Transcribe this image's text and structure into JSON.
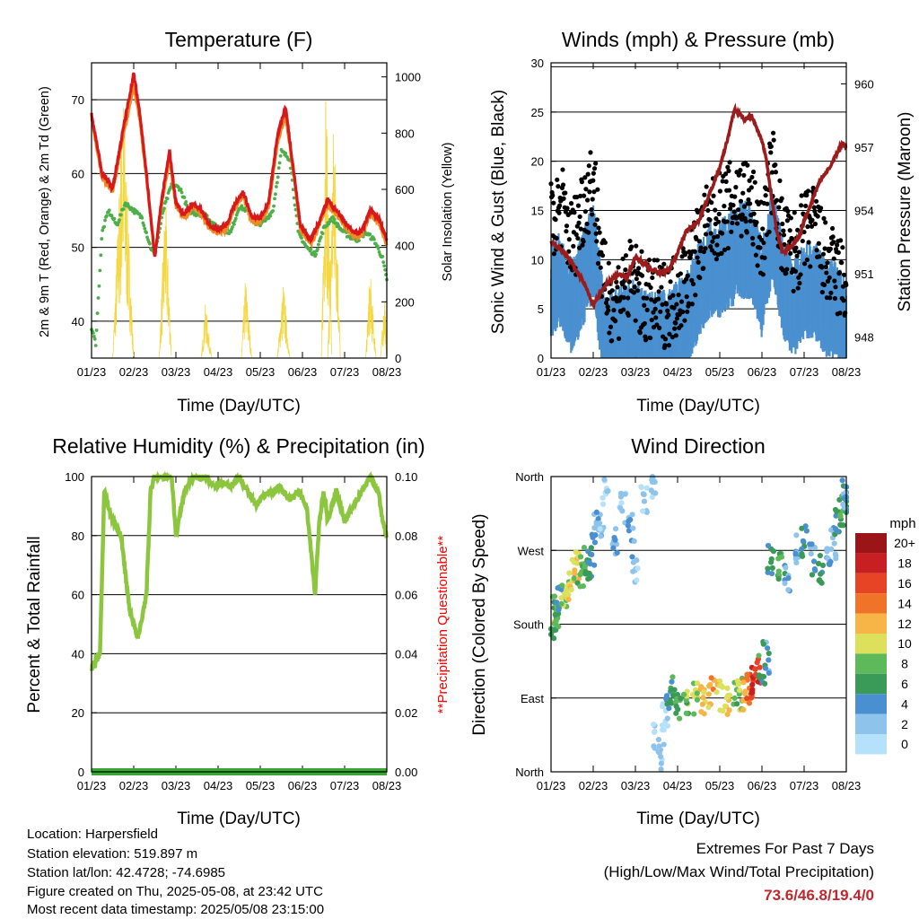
{
  "panels": {
    "temperature": {
      "title": "Temperature (F)",
      "ylabel_left": "2m & 9m T (Red, Orange) & 2m Td (Green)",
      "ylabel_right": "Solar Insolation (Yellow)",
      "xlabel": "Time (Day/UTC)"
    },
    "winds": {
      "title": "Winds (mph) & Pressure (mb)",
      "ylabel_left": "Sonic Wind & Gust (Blue, Black)",
      "ylabel_right": "Station Pressure (Maroon)",
      "xlabel": "Time (Day/UTC)"
    },
    "humidity": {
      "title": "Relative Humidity (%) & Precipitation (in)",
      "ylabel_left": "Percent & Total Rainfall",
      "ylabel_right": "**Precipitation Questionable**",
      "xlabel": "Time (Day/UTC)"
    },
    "direction": {
      "title": "Wind Direction",
      "ylabel_left": "Direction (Colored By Speed)",
      "xlabel": "Time (Day/UTC)",
      "colorbar_title": "mph"
    }
  },
  "info": {
    "location": "Location: Harpersfield",
    "elevation": "Station elevation: 519.897 m",
    "latlon": "Station lat/lon: 42.4728; -74.6985",
    "created": "Figure created on Thu, 2025-05-08, at 23:42 UTC",
    "recent": "Most recent data timestamp: 2025/05/08 23:15:00"
  },
  "extremes": {
    "line1": "Extremes For Past 7 Days",
    "line2": "(High/Low/Max Wind/Total Precipitation)",
    "values": "73.6/46.8/19.4/0"
  },
  "colors": {
    "temp2m": "#d7191c",
    "temp9m": "#f08a24",
    "dewpoint": "#4daf4a",
    "solar": "#f5d742",
    "wind": "#4a90d0",
    "gust": "#000000",
    "pressure": "#9b1c1c",
    "rh": "#8cc63f",
    "precip": "#3aa635",
    "precip_label": "#ff0000",
    "extremes": "#c0282d",
    "speed_scale": [
      "#b5e2fa",
      "#8ec3ec",
      "#4a90d0",
      "#3a9a58",
      "#5eb95b",
      "#dde05a",
      "#f7b548",
      "#f0732a",
      "#e64425",
      "#c71f22",
      "#9a1418"
    ]
  },
  "chart_data": [
    {
      "type": "line",
      "title": "Temperature (F)",
      "xlabel": "Time (Day/UTC)",
      "x_ticks": [
        "01/23",
        "02/23",
        "03/23",
        "04/23",
        "05/23",
        "06/23",
        "07/23",
        "08/23"
      ],
      "x_range": [
        0,
        7
      ],
      "ylim": [
        35,
        75
      ],
      "y_ticks": [
        40,
        50,
        60,
        70
      ],
      "y2lim": [
        0,
        1050
      ],
      "y2_ticks": [
        0,
        200,
        400,
        600,
        800,
        1000
      ],
      "grid": "horizontal",
      "series": [
        {
          "name": "2m T",
          "axis": "left",
          "x": [
            0,
            0.25,
            0.5,
            0.75,
            1.0,
            1.15,
            1.3,
            1.5,
            1.65,
            1.85,
            2.0,
            2.2,
            2.4,
            2.6,
            2.8,
            3.0,
            3.2,
            3.4,
            3.6,
            3.8,
            4.0,
            4.2,
            4.4,
            4.6,
            4.8,
            4.95,
            5.2,
            5.4,
            5.6,
            5.8,
            6.0,
            6.2,
            6.4,
            6.6,
            6.8,
            7.0
          ],
          "values": [
            68,
            60,
            58,
            66,
            73.5,
            68,
            60,
            48.5,
            56,
            63,
            56,
            54.5,
            56,
            55,
            53,
            52.5,
            53,
            56,
            57.5,
            54,
            54,
            56,
            65,
            69,
            60,
            53,
            51,
            53.5,
            56.5,
            55,
            53.5,
            52,
            52,
            55,
            54,
            51
          ]
        },
        {
          "name": "9m T",
          "axis": "left",
          "x": [
            0,
            0.25,
            0.5,
            0.75,
            1.0,
            1.15,
            1.3,
            1.5,
            1.65,
            1.85,
            2.0,
            2.2,
            2.4,
            2.6,
            2.8,
            3.0,
            3.2,
            3.4,
            3.6,
            3.8,
            4.0,
            4.2,
            4.4,
            4.6,
            4.8,
            4.95,
            5.2,
            5.4,
            5.6,
            5.8,
            6.0,
            6.2,
            6.4,
            6.6,
            6.8,
            7.0
          ],
          "values": [
            67.5,
            59.5,
            57.5,
            65,
            72,
            67,
            59.5,
            49,
            55.5,
            62,
            55.5,
            54,
            55.5,
            54.5,
            52.5,
            52,
            52.5,
            55.5,
            57,
            53.5,
            53.5,
            55.5,
            64,
            68,
            59.5,
            52.5,
            50.5,
            53,
            56,
            54.5,
            53,
            51.5,
            51.5,
            54.5,
            53.5,
            50.5
          ]
        },
        {
          "name": "2m Td",
          "axis": "left",
          "x": [
            0,
            0.1,
            0.25,
            0.4,
            0.6,
            0.8,
            1.0,
            1.2,
            1.4,
            1.5,
            1.7,
            1.9,
            2.1,
            2.3,
            2.5,
            2.7,
            2.9,
            3.1,
            3.3,
            3.5,
            3.7,
            3.9,
            4.1,
            4.3,
            4.5,
            4.7,
            4.9,
            5.1,
            5.3,
            5.5,
            5.7,
            5.9,
            6.1,
            6.3,
            6.5,
            6.7,
            6.9,
            7.0
          ],
          "values": [
            39,
            37,
            52,
            55,
            53,
            56,
            55,
            54,
            50,
            49,
            55,
            58.5,
            58,
            55,
            54.5,
            54.5,
            53,
            52.5,
            52,
            55.5,
            55,
            53,
            53.5,
            55,
            63,
            62,
            52,
            50,
            49,
            52.5,
            54,
            52.5,
            51.5,
            51,
            52,
            51,
            48.5,
            45.5
          ]
        },
        {
          "name": "Solar Insolation",
          "axis": "right",
          "bursts": [
            [
              0.5,
              0.75,
              1.0,
              980
            ],
            [
              1.6,
              1.75,
              1.9,
              600
            ],
            [
              2.6,
              2.7,
              2.85,
              200
            ],
            [
              3.55,
              3.65,
              3.8,
              300
            ],
            [
              4.4,
              4.55,
              4.7,
              280
            ],
            [
              5.45,
              5.55,
              5.7,
              1040
            ],
            [
              5.6,
              5.75,
              5.9,
              950
            ],
            [
              6.5,
              6.6,
              6.75,
              330
            ],
            [
              6.85,
              6.95,
              7.0,
              250
            ]
          ]
        }
      ]
    },
    {
      "type": "scatter",
      "title": "Winds (mph) & Pressure (mb)",
      "xlabel": "Time (Day/UTC)",
      "x_ticks": [
        "01/23",
        "02/23",
        "03/23",
        "04/23",
        "05/23",
        "06/23",
        "07/23",
        "08/23"
      ],
      "x_range": [
        0,
        7
      ],
      "ylim": [
        0,
        30
      ],
      "y_ticks": [
        0,
        5,
        10,
        15,
        20,
        25,
        30
      ],
      "y2lim": [
        947,
        961
      ],
      "y2_ticks": [
        948,
        951,
        954,
        957,
        960
      ],
      "grid": "horizontal",
      "series": [
        {
          "name": "Sonic Wind",
          "type": "area",
          "x": [
            0,
            0.25,
            0.5,
            0.75,
            1.0,
            1.25,
            1.5,
            1.75,
            2.0,
            2.25,
            2.5,
            2.75,
            3.0,
            3.25,
            3.5,
            3.75,
            4.0,
            4.25,
            4.5,
            4.75,
            5.0,
            5.25,
            5.5,
            5.75,
            6.0,
            6.25,
            6.5,
            6.75,
            7.0
          ],
          "values": [
            8,
            9,
            6,
            9,
            12,
            3,
            3,
            4,
            4,
            3,
            3,
            3,
            4,
            5,
            8,
            10,
            10,
            11,
            12,
            12,
            8,
            14,
            8,
            6,
            8,
            8,
            6,
            6,
            4
          ]
        },
        {
          "name": "Gust",
          "type": "scatter",
          "x": [
            0,
            0.25,
            0.5,
            0.75,
            1.0,
            1.25,
            1.5,
            1.75,
            2.0,
            2.25,
            2.5,
            2.75,
            3.0,
            3.25,
            3.5,
            3.75,
            4.0,
            4.25,
            4.5,
            4.75,
            5.0,
            5.25,
            5.5,
            5.75,
            6.0,
            6.25,
            6.5,
            6.75,
            7.0
          ],
          "values": [
            14,
            16,
            12,
            16,
            19,
            8,
            6,
            8,
            8,
            6,
            6,
            6,
            7,
            9,
            12,
            14,
            15,
            16,
            17,
            16,
            12,
            20,
            12,
            11,
            13,
            14,
            10,
            9,
            8
          ]
        },
        {
          "name": "Station Pressure",
          "type": "line",
          "axis": "right",
          "x": [
            0,
            0.3,
            0.5,
            0.8,
            1.0,
            1.3,
            1.6,
            1.8,
            2.0,
            2.2,
            2.4,
            2.6,
            2.8,
            3.0,
            3.2,
            3.5,
            3.8,
            4.0,
            4.2,
            4.35,
            4.5,
            4.6,
            4.75,
            4.9,
            5.0,
            5.1,
            5.2,
            5.35,
            5.5,
            5.7,
            5.9,
            6.0,
            6.2,
            6.4,
            6.6,
            6.8,
            6.9,
            7.0
          ],
          "values": [
            952.5,
            952,
            951.5,
            950.5,
            949.5,
            950.5,
            951,
            950.8,
            951.8,
            951.5,
            951.2,
            951,
            951.2,
            952,
            953,
            953.5,
            955,
            956,
            957.5,
            958.8,
            958.5,
            958.3,
            958.5,
            957.8,
            957.3,
            956.5,
            955,
            953,
            952,
            952.3,
            952.8,
            953.5,
            954.5,
            955.5,
            956,
            956.8,
            957.2,
            957
          ]
        }
      ]
    },
    {
      "type": "line",
      "title": "Relative Humidity (%) & Precipitation (in)",
      "xlabel": "Time (Day/UTC)",
      "x_ticks": [
        "01/23",
        "02/23",
        "03/23",
        "04/23",
        "05/23",
        "06/23",
        "07/23",
        "08/23"
      ],
      "x_range": [
        0,
        7
      ],
      "ylim": [
        0,
        100
      ],
      "y_ticks": [
        0,
        20,
        40,
        60,
        80,
        100
      ],
      "y2lim": [
        0,
        0.1
      ],
      "y2_ticks": [
        "0.00",
        "0.02",
        "0.04",
        "0.06",
        "0.08",
        "0.10"
      ],
      "grid": "horizontal",
      "series": [
        {
          "name": "Relative Humidity",
          "axis": "left",
          "x": [
            0,
            0.1,
            0.2,
            0.3,
            0.4,
            0.5,
            0.7,
            0.9,
            1.0,
            1.1,
            1.3,
            1.4,
            1.5,
            1.7,
            1.9,
            2.0,
            2.2,
            2.4,
            2.5,
            2.7,
            2.9,
            3.1,
            3.3,
            3.5,
            3.7,
            3.9,
            4.1,
            4.3,
            4.5,
            4.7,
            4.9,
            5.1,
            5.3,
            5.4,
            5.5,
            5.6,
            5.8,
            6.0,
            6.2,
            6.4,
            6.6,
            6.8,
            6.9,
            7.0
          ],
          "values": [
            35,
            38,
            40,
            95,
            90,
            85,
            80,
            55,
            50,
            45,
            60,
            95,
            100,
            100,
            100,
            80,
            95,
            100,
            100,
            100,
            97,
            98,
            97,
            100,
            95,
            90,
            94,
            95,
            96,
            92,
            95,
            90,
            60,
            85,
            95,
            85,
            95,
            85,
            90,
            95,
            100,
            95,
            85,
            80
          ]
        },
        {
          "name": "Total Precipitation",
          "axis": "right",
          "x": [
            0,
            7
          ],
          "values": [
            0,
            0
          ]
        }
      ]
    },
    {
      "type": "scatter",
      "title": "Wind Direction",
      "xlabel": "Time (Day/UTC)",
      "ylabel": "Direction (Colored By Speed)",
      "x_ticks": [
        "01/23",
        "02/23",
        "03/23",
        "04/23",
        "05/23",
        "06/23",
        "07/23",
        "08/23"
      ],
      "x_range": [
        0,
        7
      ],
      "y_ticks": [
        "North",
        "East",
        "South",
        "West",
        "North"
      ],
      "ylim": [
        0,
        360
      ],
      "grid": "horizontal",
      "colorbar": {
        "title": "mph",
        "labels": [
          "20+",
          "18",
          "16",
          "14",
          "12",
          "10",
          "8",
          "6",
          "4",
          "2",
          "0"
        ]
      },
      "series": [
        {
          "name": "Direction",
          "x": [
            0.05,
            0.1,
            0.15,
            0.2,
            0.3,
            0.4,
            0.5,
            0.6,
            0.7,
            0.8,
            0.9,
            1.0,
            1.1,
            1.2,
            1.3,
            1.5,
            1.7,
            1.9,
            2.0,
            2.2,
            2.4,
            2.5,
            2.6,
            2.7,
            2.8,
            2.9,
            3.0,
            3.2,
            3.4,
            3.6,
            3.8,
            4.0,
            4.2,
            4.4,
            4.5,
            4.6,
            4.7,
            4.8,
            4.9,
            5.0,
            5.1,
            5.2,
            5.4,
            5.6,
            5.8,
            6.0,
            6.2,
            6.4,
            6.6,
            6.7,
            6.8,
            6.9,
            7.0,
            6.95
          ],
          "values": [
            180,
            200,
            195,
            210,
            220,
            230,
            240,
            250,
            245,
            260,
            255,
            270,
            300,
            290,
            340,
            280,
            320,
            300,
            250,
            330,
            350,
            40,
            20,
            70,
            90,
            100,
            85,
            88,
            90,
            88,
            95,
            92,
            85,
            90,
            95,
            92,
            100,
            110,
            120,
            125,
            140,
            260,
            250,
            240,
            270,
            280,
            260,
            250,
            270,
            280,
            300,
            320,
            330,
            340
          ],
          "speeds": [
            6,
            8,
            7,
            5,
            9,
            10,
            11,
            10,
            8,
            7,
            5,
            4,
            3,
            2,
            1,
            3,
            2,
            3,
            2,
            1,
            1,
            2,
            1,
            0,
            5,
            6,
            7,
            8,
            9,
            11,
            12,
            11,
            10,
            8,
            9,
            13,
            15,
            18,
            16,
            6,
            4,
            5,
            7,
            4,
            3,
            5,
            4,
            6,
            3,
            2,
            5,
            7,
            6,
            4
          ]
        }
      ]
    }
  ]
}
